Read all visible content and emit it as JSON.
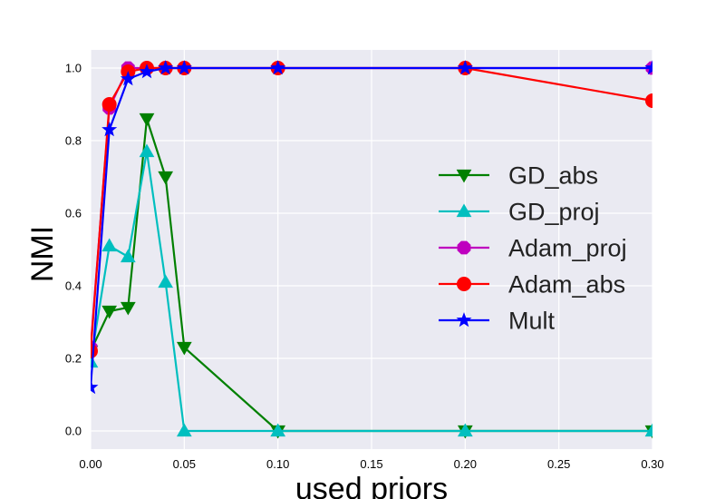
{
  "chart_data": {
    "type": "line",
    "title": "",
    "xlabel": "used priors",
    "ylabel": "NMI",
    "xlim": [
      0.0,
      0.3
    ],
    "ylim": [
      -0.05,
      1.05
    ],
    "xticks": [
      0.0,
      0.05,
      0.1,
      0.15,
      0.2,
      0.25,
      0.3
    ],
    "xtick_labels": [
      "0.00",
      "0.05",
      "0.10",
      "0.15",
      "0.20",
      "0.25",
      "0.30"
    ],
    "yticks": [
      0.0,
      0.2,
      0.4,
      0.6,
      0.8,
      1.0
    ],
    "ytick_labels": [
      "0.0",
      "0.2",
      "0.4",
      "0.6",
      "0.8",
      "1.0"
    ],
    "grid": true,
    "legend_position": "center-right",
    "x": [
      0.0,
      0.01,
      0.02,
      0.03,
      0.04,
      0.05,
      0.1,
      0.2,
      0.3
    ],
    "series": [
      {
        "name": "GD_abs",
        "color": "#008000",
        "marker": "triangle-down",
        "values": [
          0.22,
          0.33,
          0.34,
          0.86,
          0.7,
          0.23,
          0.0,
          0.0,
          0.0
        ]
      },
      {
        "name": "GD_proj",
        "color": "#00bfbf",
        "marker": "triangle-up",
        "values": [
          0.19,
          0.51,
          0.48,
          0.77,
          0.41,
          0.0,
          0.0,
          0.0,
          0.0
        ]
      },
      {
        "name": "Adam_proj",
        "color": "#bf00bf",
        "marker": "octagon",
        "values": [
          0.23,
          0.89,
          1.0,
          1.0,
          1.0,
          1.0,
          1.0,
          1.0,
          1.0
        ]
      },
      {
        "name": "Adam_abs",
        "color": "#ff0000",
        "marker": "circle",
        "values": [
          0.22,
          0.9,
          0.99,
          1.0,
          1.0,
          1.0,
          1.0,
          1.0,
          0.91
        ]
      },
      {
        "name": "Mult",
        "color": "#0000ff",
        "marker": "star",
        "values": [
          0.12,
          0.83,
          0.97,
          0.99,
          1.0,
          1.0,
          1.0,
          1.0,
          1.0
        ]
      }
    ]
  },
  "colors": {
    "plot_background": "#eaeaf2",
    "grid": "#ffffff"
  }
}
